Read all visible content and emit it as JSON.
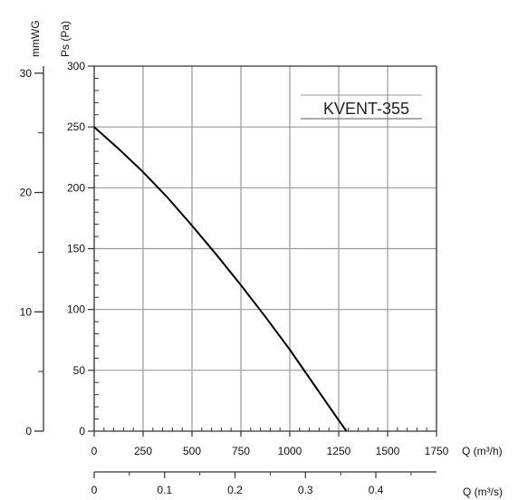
{
  "chart_data": {
    "type": "line",
    "title": "",
    "model_label": "KVENT-355",
    "xlabel": "Q (m³/h)",
    "x2label": "Q (m³/s)",
    "ylabel": "Ps (Pa)",
    "y2label": "mmWG",
    "xlim": [
      0,
      1750
    ],
    "ylim": [
      0,
      300
    ],
    "grid": true,
    "x_ticks": [
      "0",
      "250",
      "500",
      "750",
      "1000",
      "1250",
      "1500",
      "1750"
    ],
    "x_tick_values": [
      0,
      250,
      500,
      750,
      1000,
      1250,
      1500,
      1750
    ],
    "y_ticks": [
      "0",
      "50",
      "100",
      "150",
      "200",
      "250",
      "300"
    ],
    "y_tick_values": [
      0,
      50,
      100,
      150,
      200,
      250,
      300
    ],
    "mmwg_ticks": [
      "0",
      "10",
      "20",
      "30"
    ],
    "mmwg_tick_values": [
      0,
      10,
      20,
      30
    ],
    "m3s_ticks": [
      "0",
      "0.1",
      "0.2",
      "0.3",
      "0.4"
    ],
    "m3s_tick_values": [
      0,
      0.1,
      0.2,
      0.3,
      0.4
    ],
    "series": [
      {
        "color": "#000000",
        "x": [
          0,
          125,
          250,
          375,
          500,
          625,
          750,
          875,
          1000,
          1125,
          1250,
          1290
        ],
        "y": [
          250,
          232,
          213,
          192,
          169,
          145,
          120,
          94,
          67,
          38,
          9,
          0
        ]
      }
    ]
  }
}
